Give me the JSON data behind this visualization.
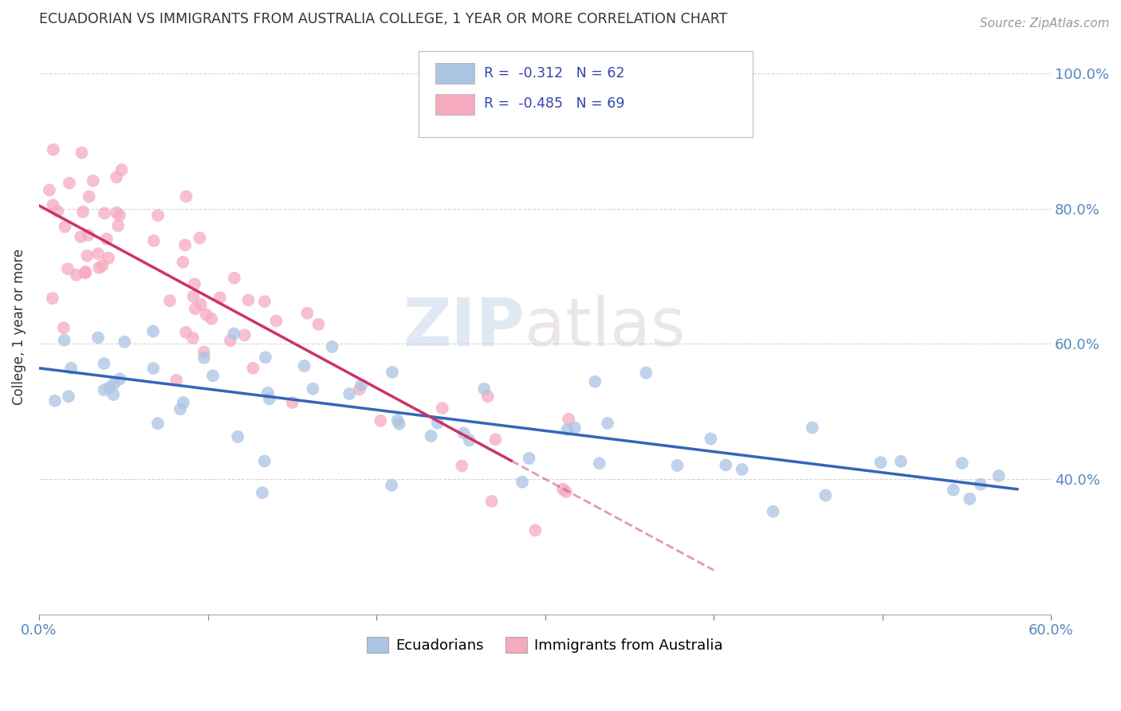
{
  "title": "ECUADORIAN VS IMMIGRANTS FROM AUSTRALIA COLLEGE, 1 YEAR OR MORE CORRELATION CHART",
  "source": "Source: ZipAtlas.com",
  "ylabel": "College, 1 year or more",
  "xlim": [
    0.0,
    0.6
  ],
  "ylim": [
    0.2,
    1.05
  ],
  "yticklabels_right": [
    "100.0%",
    "80.0%",
    "60.0%",
    "40.0%"
  ],
  "yticks_right": [
    1.0,
    0.8,
    0.6,
    0.4
  ],
  "color_blue": "#aac4e2",
  "color_pink": "#f5aabf",
  "color_trend_blue": "#3366bb",
  "color_trend_pink": "#cc3366",
  "watermark_zip": "ZIP",
  "watermark_atlas": "atlas",
  "background_color": "#ffffff",
  "grid_color": "#cccccc",
  "legend_r1": "R =  -0.312   N = 62",
  "legend_r2": "R =  -0.485   N = 69"
}
